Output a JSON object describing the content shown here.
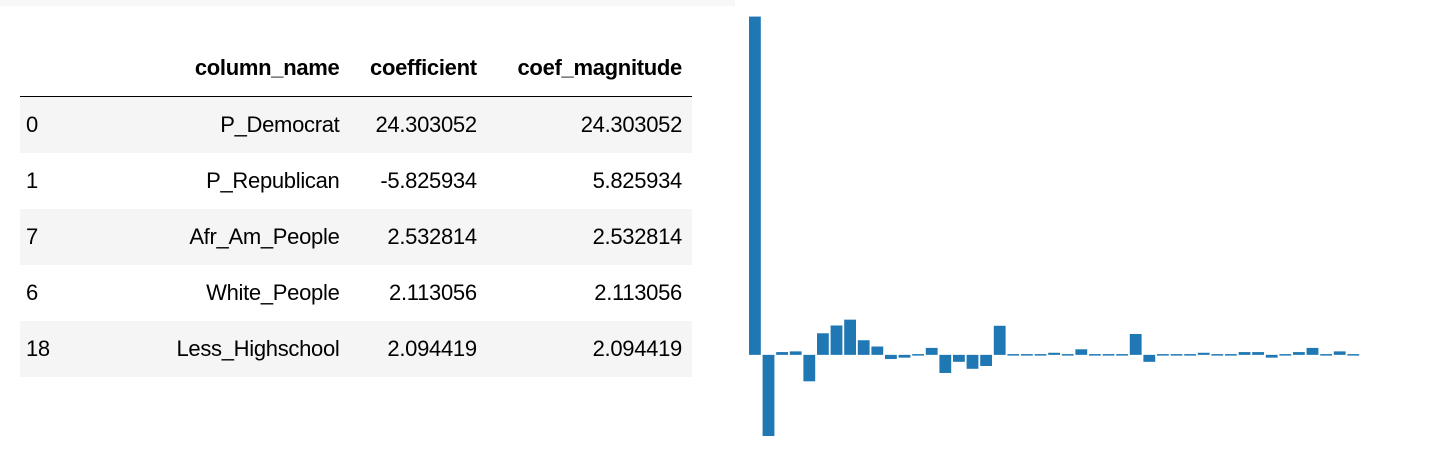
{
  "table": {
    "columns": [
      "",
      "column_name",
      "coefficient",
      "coef_magnitude"
    ],
    "rows": [
      {
        "index": "0",
        "column_name": "P_Democrat",
        "coefficient": "24.303052",
        "coef_magnitude": "24.303052"
      },
      {
        "index": "1",
        "column_name": "P_Republican",
        "coefficient": "-5.825934",
        "coef_magnitude": "5.825934"
      },
      {
        "index": "7",
        "column_name": "Afr_Am_People",
        "coefficient": "2.532814",
        "coef_magnitude": "2.532814"
      },
      {
        "index": "6",
        "column_name": "White_People",
        "coefficient": "2.113056",
        "coef_magnitude": "2.113056"
      },
      {
        "index": "18",
        "column_name": "Less_Highschool",
        "coefficient": "2.094419",
        "coef_magnitude": "2.094419"
      }
    ]
  },
  "chart_data": {
    "type": "bar",
    "color": "#1f77b4",
    "axes_visible": false,
    "ylim": [
      -5.9,
      24.7
    ],
    "values": [
      24.3,
      -5.83,
      0.2,
      0.25,
      -1.9,
      1.55,
      2.11,
      2.53,
      1.05,
      0.6,
      -0.3,
      -0.2,
      0.1,
      0.5,
      -1.3,
      -0.5,
      -1.0,
      -0.8,
      2.09,
      0.1,
      0,
      0.05,
      0.15,
      0.1,
      0.4,
      0.05,
      0.05,
      0.05,
      1.5,
      -0.5,
      0,
      0.1,
      0.1,
      0.15,
      0.1,
      0.1,
      0.2,
      0.2,
      -0.2,
      0.1,
      0.2,
      0.5,
      0,
      0.25,
      0,
      -0.45
    ]
  }
}
